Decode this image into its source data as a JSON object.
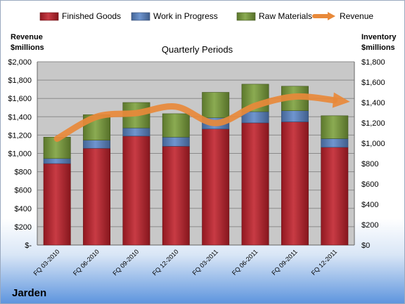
{
  "chart_data": {
    "type": "bar",
    "stacked": true,
    "title": "Quarterly Periods",
    "company": "Jarden",
    "left_axis_title": [
      "Revenue",
      "$millions"
    ],
    "right_axis_title": [
      "Inventory",
      "$millions"
    ],
    "categories": [
      "FQ 03-2010",
      "FQ 06-2010",
      "FQ 09-2010",
      "FQ 12-2010",
      "FQ 03-2011",
      "FQ 06-2011",
      "FQ 09-2011",
      "FQ 12-2011"
    ],
    "series": [
      {
        "name": "Finished Goods",
        "axis": "right",
        "color": "#c0202a",
        "values": [
          800,
          950,
          1070,
          970,
          1140,
          1200,
          1210,
          960
        ]
      },
      {
        "name": "Work in Progress",
        "axis": "right",
        "color": "#5b86c8",
        "values": [
          50,
          80,
          80,
          90,
          110,
          110,
          110,
          85
        ]
      },
      {
        "name": "Raw Materials",
        "axis": "right",
        "color": "#7ba03a",
        "values": [
          210,
          250,
          250,
          230,
          250,
          270,
          240,
          225
        ]
      },
      {
        "name": "Revenue",
        "type": "line",
        "axis": "left",
        "color": "#e8893a",
        "values": [
          1160,
          1400,
          1440,
          1510,
          1330,
          1520,
          1620,
          1580
        ]
      }
    ],
    "left_axis": {
      "min": 0,
      "max": 2000,
      "step": 200,
      "ticks": [
        "$-",
        "$200",
        "$400",
        "$600",
        "$800",
        "$1,000",
        "$1,200",
        "$1,400",
        "$1,600",
        "$1,800",
        "$2,000"
      ]
    },
    "right_axis": {
      "min": 0,
      "max": 1800,
      "step": 200,
      "ticks": [
        "$0",
        "$200",
        "$400",
        "$600",
        "$800",
        "$1,000",
        "$1,200",
        "$1,400",
        "$1,600",
        "$1,800"
      ]
    },
    "grid": true,
    "legend_position": "top"
  }
}
